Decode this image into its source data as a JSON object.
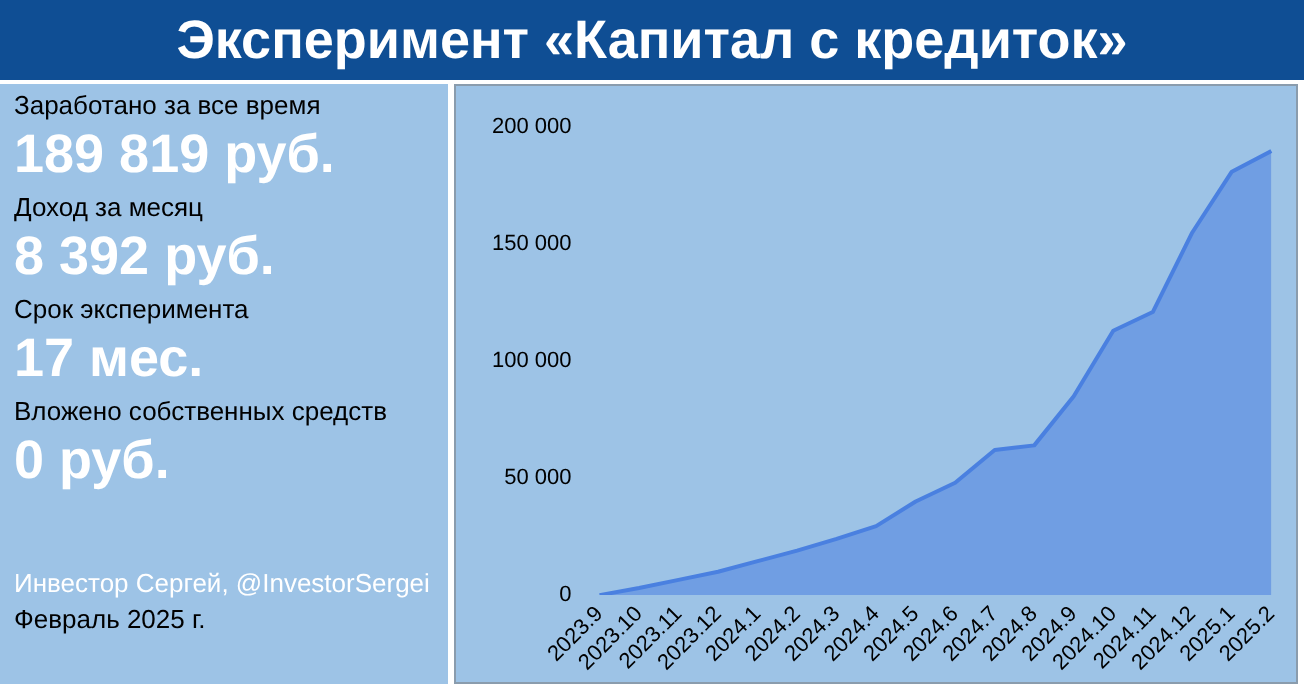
{
  "chart_data": {
    "type": "area",
    "title": "Эксперимент «Капитал с кредиток»",
    "annotations": [
      "Заработано за все время",
      "189 819 руб.",
      "Доход за месяц",
      "8 392 руб.",
      "Срок эксперимента",
      "17 мес.",
      "Вложено собственных средств",
      "0 руб.",
      "Инвестор Сергей, @InvestorSergei",
      "Февраль 2025 г."
    ],
    "categories": [
      "2023.9",
      "2023.10",
      "2023.11",
      "2023.12",
      "2024.1",
      "2024.2",
      "2024.3",
      "2024.4",
      "2024.5",
      "2024.6",
      "2024.7",
      "2024.8",
      "2024.9",
      "2024.10",
      "2024.11",
      "2024.12",
      "2025.1",
      "2025.2"
    ],
    "values": [
      0,
      3000,
      6500,
      10000,
      14500,
      19000,
      24000,
      29500,
      40000,
      48000,
      62000,
      64000,
      85000,
      113000,
      121000,
      155000,
      181000,
      189819
    ],
    "color": "#4a80e0",
    "ylim": [
      0,
      200000
    ],
    "yticks": [
      {
        "value": 0,
        "label": "0"
      },
      {
        "value": 50000,
        "label": "50 000"
      },
      {
        "value": 100000,
        "label": "100 000"
      },
      {
        "value": 150000,
        "label": "150 000"
      },
      {
        "value": 200000,
        "label": "200 000"
      }
    ],
    "grid": false,
    "legend": false
  }
}
